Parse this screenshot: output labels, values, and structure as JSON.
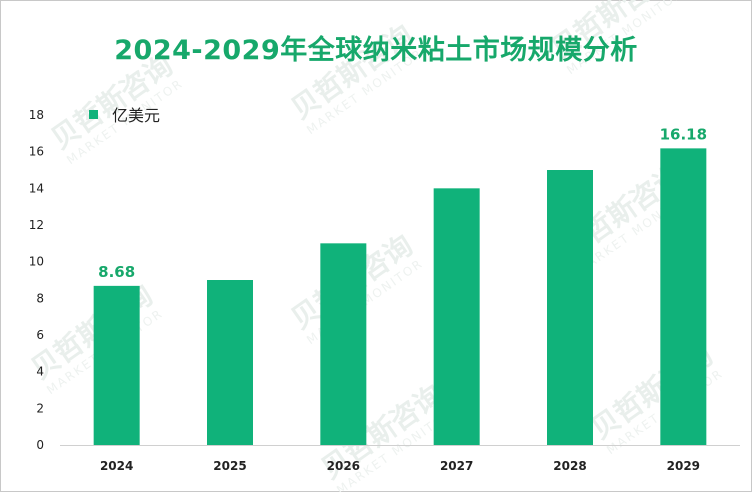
{
  "title": "2024-2029年全球纳米粘土市场规模分析",
  "watermark": {
    "brand": "贝哲斯咨询",
    "sub": "MARKET MONITOR"
  },
  "colors": {
    "bar": "#10b27a",
    "title": "#17a86b",
    "label": "#17a86b"
  },
  "chart_data": {
    "type": "bar",
    "title": "2024-2029年全球纳米粘土市场规模分析",
    "categories": [
      "2024",
      "2025",
      "2026",
      "2027",
      "2028",
      "2029"
    ],
    "series": [
      {
        "name": "亿美元",
        "values": [
          8.68,
          9.0,
          11.0,
          14.0,
          15.0,
          16.18
        ]
      }
    ],
    "data_labels": {
      "2024": "8.68",
      "2029": "16.18"
    },
    "ylim": [
      0,
      18
    ],
    "yticks": [
      "0",
      "2",
      "4",
      "6",
      "8",
      "10",
      "12",
      "14",
      "16",
      "18"
    ],
    "xlabel": "",
    "ylabel": "",
    "legend": {
      "position": "top-left",
      "label": "亿美元"
    },
    "grid": false
  }
}
